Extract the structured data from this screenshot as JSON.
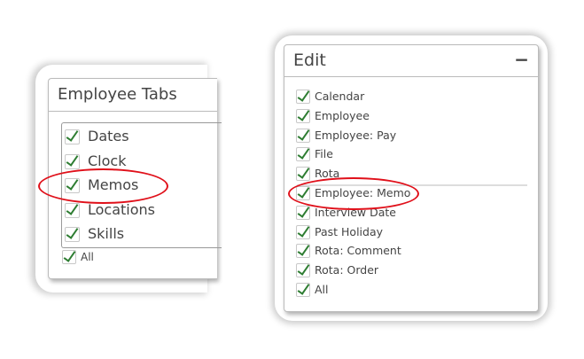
{
  "employee_tabs": {
    "title": "Employee Tabs",
    "items": [
      {
        "label": "Dates",
        "checked": true
      },
      {
        "label": "Clock",
        "checked": true
      },
      {
        "label": "Memos",
        "checked": true
      },
      {
        "label": "Locations",
        "checked": true
      },
      {
        "label": "Skills",
        "checked": true
      }
    ],
    "all": {
      "label": "All",
      "checked": true
    }
  },
  "edit": {
    "title": "Edit",
    "collapse_symbol": "−",
    "items": [
      {
        "label": "Calendar",
        "checked": true
      },
      {
        "label": "Employee",
        "checked": true
      },
      {
        "label": "Employee: Pay",
        "checked": true
      },
      {
        "label": "File",
        "checked": true
      },
      {
        "label": "Rota",
        "checked": true
      },
      {
        "label": "Employee: Memo",
        "checked": true
      },
      {
        "label": "Interview Date",
        "checked": true
      },
      {
        "label": "Past Holiday",
        "checked": true
      },
      {
        "label": "Rota: Comment",
        "checked": true
      },
      {
        "label": "Rota: Order",
        "checked": true
      },
      {
        "label": "All",
        "checked": true
      }
    ]
  },
  "highlight_color": "#e0101a",
  "check_color": "#2e7d32"
}
